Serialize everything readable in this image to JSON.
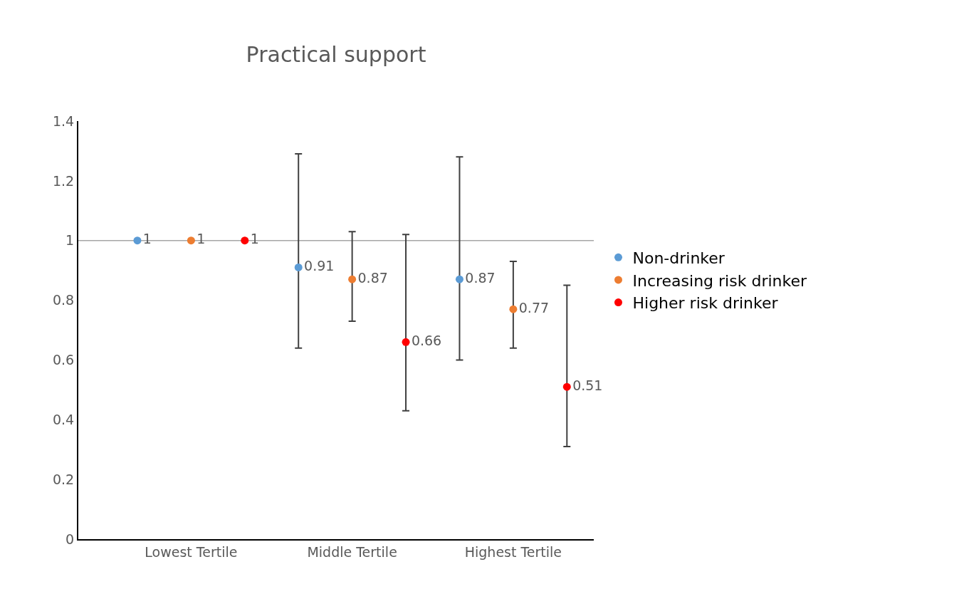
{
  "chart_data": {
    "type": "scatter",
    "title": "Practical support",
    "categories": [
      "Lowest Tertile",
      "Middle Tertile",
      "Highest Tertile"
    ],
    "series": [
      {
        "name": "Non-drinker",
        "color": "#5b9bd5",
        "values": [
          1,
          0.91,
          0.87
        ],
        "errors": [
          null,
          [
            0.64,
            1.29
          ],
          [
            0.6,
            1.28
          ]
        ]
      },
      {
        "name": "Increasing risk drinker",
        "color": "#ed7d31",
        "values": [
          1,
          0.87,
          0.77
        ],
        "errors": [
          null,
          [
            0.73,
            1.03
          ],
          [
            0.64,
            0.93
          ]
        ]
      },
      {
        "name": "Higher risk drinker",
        "color": "#ff0000",
        "values": [
          1,
          0.66,
          0.51
        ],
        "errors": [
          null,
          [
            0.43,
            1.02
          ],
          [
            0.31,
            0.85
          ]
        ]
      }
    ],
    "ylim": [
      0,
      1.4
    ],
    "yticks": [
      0,
      0.2,
      0.4,
      0.6,
      0.8,
      1,
      1.2,
      1.4
    ],
    "ref_lines": [
      {
        "axis": "y",
        "value": 1,
        "color": "#a6a6a6"
      }
    ],
    "data_labels": true,
    "legend": "right",
    "grid": false,
    "marker": "circle"
  }
}
